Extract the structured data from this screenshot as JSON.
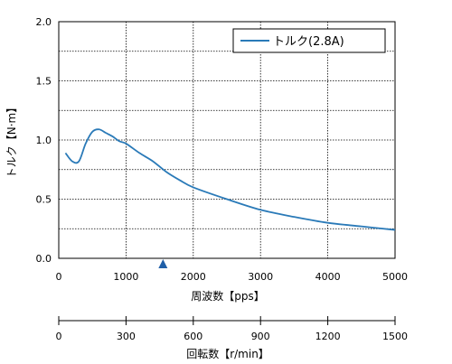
{
  "chart_data": [
    {
      "type": "line",
      "xlabel": "周波数【pps】",
      "ylabel": "トルク【N·m】",
      "xlim": [
        0,
        5000
      ],
      "ylim": [
        0,
        2.0
      ],
      "x_ticks": [
        "0",
        "1000",
        "2000",
        "3000",
        "4000",
        "5000"
      ],
      "y_ticks": [
        "0.0",
        "0.5",
        "1.0",
        "1.5",
        "2.0"
      ],
      "x_tick_values": [
        0,
        1000,
        2000,
        3000,
        4000,
        5000
      ],
      "y_tick_values": [
        0,
        0.5,
        1.0,
        1.5,
        2.0
      ],
      "grid": true,
      "legend_position": "top-right",
      "series": [
        {
          "name": "トルク(2.8A)",
          "color": "#2a7ab8",
          "x": [
            100,
            200,
            300,
            400,
            500,
            600,
            700,
            800,
            900,
            1000,
            1200,
            1400,
            1600,
            1800,
            2000,
            2500,
            3000,
            3500,
            4000,
            4500,
            5000
          ],
          "y": [
            0.89,
            0.82,
            0.82,
            0.97,
            1.07,
            1.09,
            1.06,
            1.03,
            0.99,
            0.97,
            0.89,
            0.82,
            0.73,
            0.66,
            0.6,
            0.5,
            0.41,
            0.35,
            0.3,
            0.27,
            0.24
          ]
        }
      ],
      "marker": {
        "x": 1550,
        "symbol": "triangle",
        "color": "#1f5fa8"
      }
    },
    {
      "type": "axis",
      "xlabel": "回転数【r/min】",
      "xlim": [
        0,
        1500
      ],
      "x_ticks": [
        "0",
        "300",
        "600",
        "900",
        "1200",
        "1500"
      ],
      "x_tick_values": [
        0,
        300,
        600,
        900,
        1200,
        1500
      ]
    }
  ]
}
